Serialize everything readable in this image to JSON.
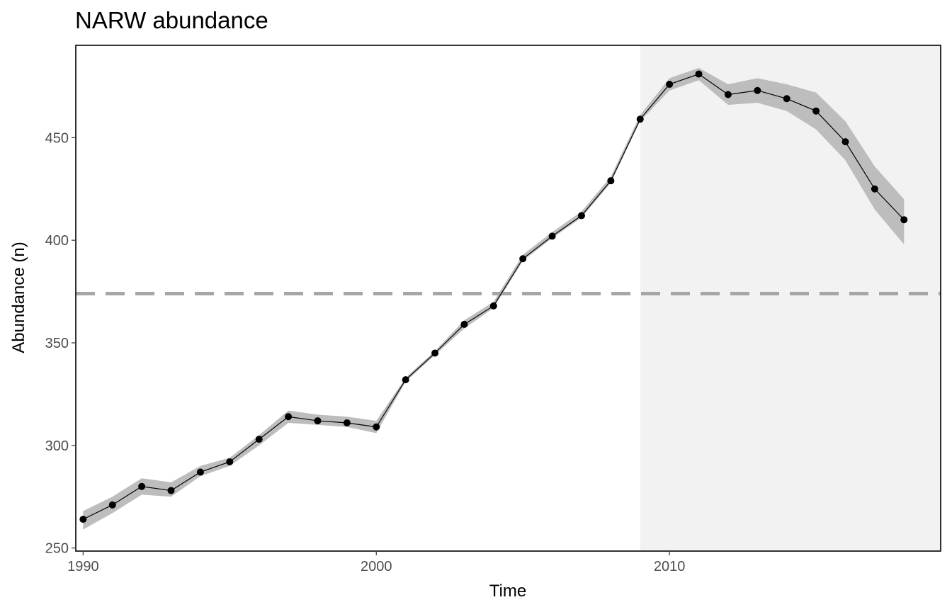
{
  "chart_data": {
    "type": "line",
    "title": "NARW abundance",
    "xlabel": "Time",
    "ylabel": "Abundance (n)",
    "x": [
      1990,
      1991,
      1992,
      1993,
      1994,
      1995,
      1996,
      1997,
      1998,
      1999,
      2000,
      2001,
      2002,
      2003,
      2004,
      2005,
      2006,
      2007,
      2008,
      2009,
      2010,
      2011,
      2012,
      2013,
      2014,
      2015,
      2016,
      2017,
      2018
    ],
    "series": [
      {
        "values": [
          264,
          271,
          280,
          278,
          287,
          292,
          303,
          314,
          312,
          311,
          309,
          332,
          345,
          359,
          368,
          391,
          402,
          412,
          429,
          459,
          476,
          481,
          471,
          473,
          469,
          463,
          448,
          425,
          410
        ],
        "lower": [
          259,
          267,
          276,
          275,
          285,
          290,
          300,
          311,
          310,
          309,
          306,
          331,
          344,
          357,
          367,
          390,
          401,
          411,
          428,
          458,
          473,
          478,
          466,
          467,
          463,
          454,
          439,
          415,
          398
        ],
        "upper": [
          268,
          275,
          284,
          282,
          290,
          294,
          305,
          317,
          315,
          314,
          312,
          333,
          346,
          361,
          370,
          393,
          404,
          414,
          431,
          461,
          479,
          484,
          476,
          479,
          476,
          472,
          458,
          436,
          420
        ]
      }
    ],
    "reference_line": {
      "y": 374,
      "style": "dashed",
      "color": "#a6a6a6"
    },
    "shaded_region": {
      "x_from": 2009,
      "color": "#f2f2f2"
    },
    "xlim": [
      1989.75,
      2019.25
    ],
    "ylim": [
      248.5,
      495
    ],
    "xticks": [
      1990,
      2000,
      2010
    ],
    "xtick_labels": [
      "1990",
      "2000",
      "2010"
    ],
    "yticks": [
      250,
      300,
      350,
      400,
      450
    ],
    "ytick_labels": [
      "250",
      "300",
      "350",
      "400",
      "450"
    ],
    "grid": false,
    "legend": "none",
    "colors": {
      "line": "#000000",
      "ribbon": "#bdbdbd",
      "point": "#000000"
    }
  }
}
